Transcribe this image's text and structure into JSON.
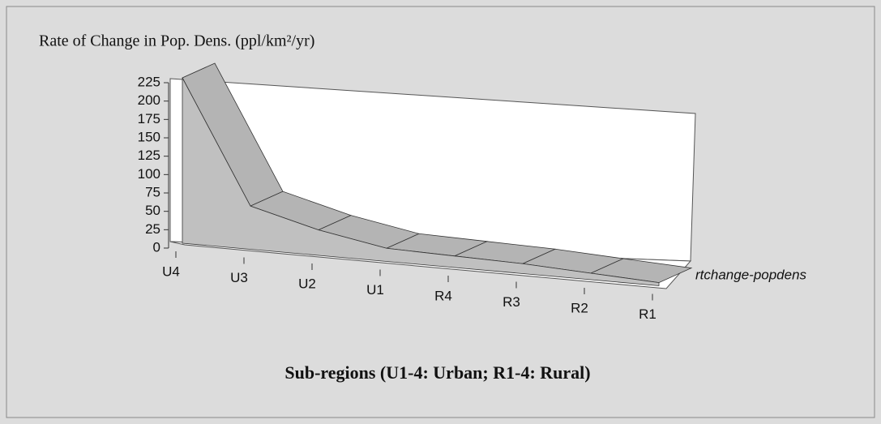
{
  "chart_data": {
    "type": "area3d",
    "ylabel": "Rate of Change in Pop. Dens. (ppl/km²/yr)",
    "xlabel": "Sub-regions (U1-4: Urban;  R1-4: Rural)",
    "categories": [
      "U4",
      "U3",
      "U2",
      "U1",
      "R4",
      "R3",
      "R2",
      "R1"
    ],
    "series": [
      {
        "name": "rtchange-popdens",
        "color": "#c0c0c0",
        "values": [
          225,
          60,
          36,
          19,
          17,
          15,
          10,
          5
        ]
      }
    ],
    "ylim": [
      0,
      225
    ],
    "yticks": [
      0,
      25,
      50,
      75,
      100,
      125,
      150,
      175,
      200,
      225
    ]
  }
}
